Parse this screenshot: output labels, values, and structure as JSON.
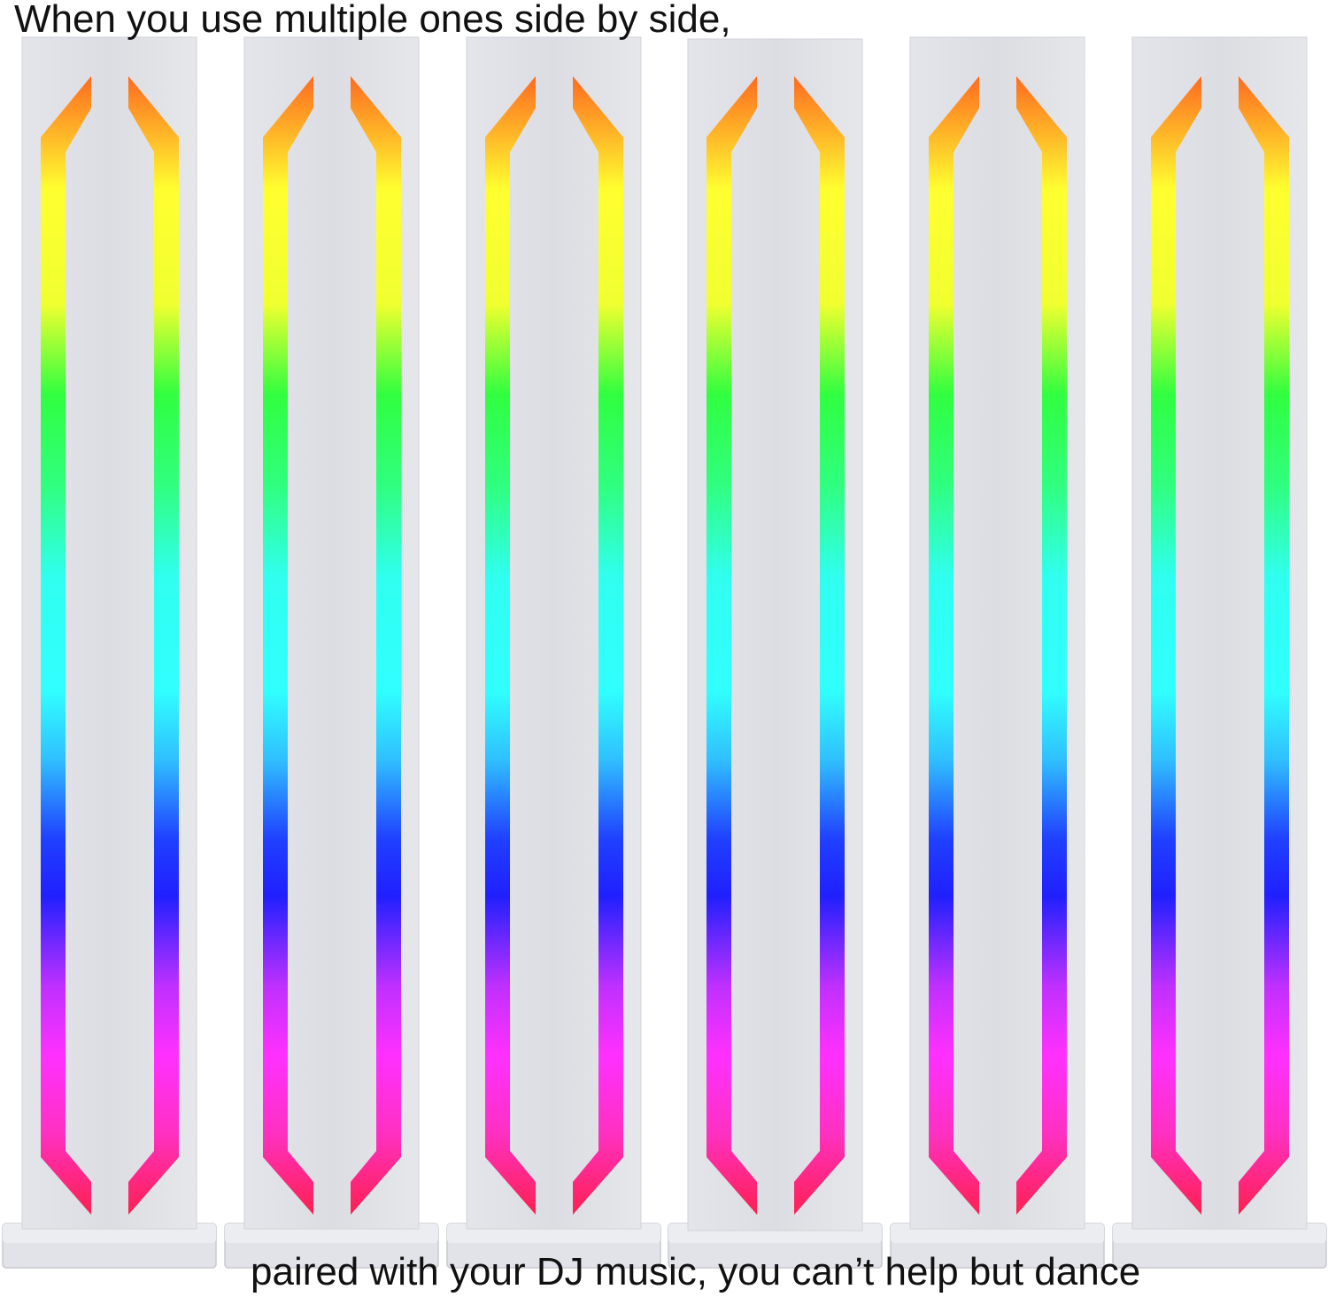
{
  "header": {
    "text": "When you use multiple ones side by side,"
  },
  "footer": {
    "text": "paired with your DJ music, you can’t help but dance"
  }
}
